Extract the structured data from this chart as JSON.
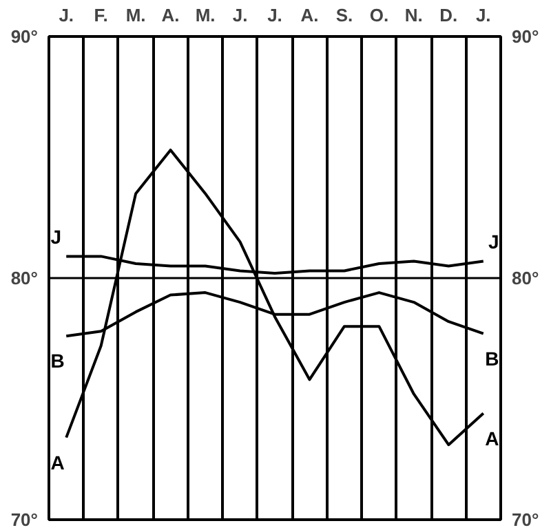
{
  "chart_data": {
    "type": "line",
    "categories": [
      "J.",
      "F.",
      "M.",
      "A.",
      "M.",
      "J.",
      "J.",
      "A.",
      "S.",
      "O.",
      "N.",
      "D.",
      "J."
    ],
    "ylim": [
      70,
      90
    ],
    "yticks": [
      {
        "value": 70,
        "label": "70°"
      },
      {
        "value": 80,
        "label": "80°"
      },
      {
        "value": 90,
        "label": "90°"
      }
    ],
    "y2lim": [
      70,
      90
    ],
    "y2ticks": [
      {
        "value": 70,
        "label": "70°"
      },
      {
        "value": 80,
        "label": "80°"
      },
      {
        "value": 90,
        "label": "90°"
      }
    ],
    "grid": "x",
    "ref_lines": [
      {
        "axis": "y",
        "value": 80,
        "label": null
      }
    ],
    "series": [
      {
        "name": "J",
        "color": "#000000",
        "values": [
          80.9,
          80.9,
          80.6,
          80.5,
          80.5,
          80.3,
          80.2,
          80.3,
          80.3,
          80.6,
          80.7,
          80.5,
          80.7
        ]
      },
      {
        "name": "B",
        "color": "#000000",
        "values": [
          77.6,
          77.8,
          78.6,
          79.3,
          79.4,
          79.0,
          78.5,
          78.5,
          79.0,
          79.4,
          79.0,
          78.2,
          77.7
        ]
      },
      {
        "name": "A",
        "color": "#000000",
        "values": [
          73.4,
          77.2,
          83.5,
          85.3,
          83.5,
          81.5,
          78.4,
          75.8,
          78.0,
          78.0,
          75.2,
          73.1,
          74.4
        ]
      }
    ]
  }
}
